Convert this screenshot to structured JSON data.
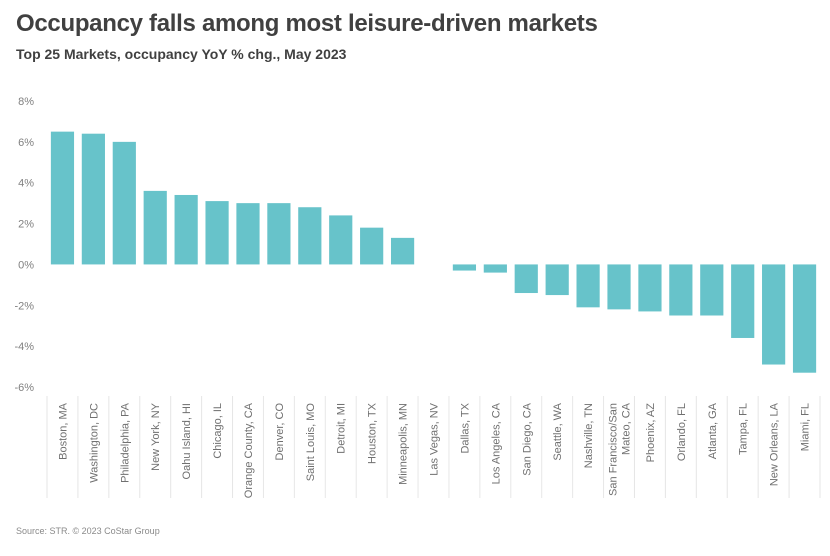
{
  "title": "Occupancy falls among most leisure-driven markets",
  "subtitle": "Top 25 Markets, occupancy YoY % chg., May 2023",
  "source": "Source: STR. © 2023 CoStar Group",
  "colors": {
    "bar": "#67C3CA",
    "text": "#404040",
    "tick": "#808080",
    "gridline": "#e6e6e6"
  },
  "chart_data": {
    "type": "bar",
    "title": "Occupancy falls among most leisure-driven markets",
    "subtitle": "Top 25 Markets, occupancy YoY % chg., May 2023",
    "xlabel": "",
    "ylabel": "",
    "ylim": [
      -6,
      8
    ],
    "yticks": [
      {
        "value": 8,
        "label": "8%"
      },
      {
        "value": 6,
        "label": "6%"
      },
      {
        "value": 4,
        "label": "4%"
      },
      {
        "value": 2,
        "label": "2%"
      },
      {
        "value": 0,
        "label": "0%"
      },
      {
        "value": -2,
        "label": "-2%"
      },
      {
        "value": -4,
        "label": "-4%"
      },
      {
        "value": -6,
        "label": "-6%"
      }
    ],
    "grid": false,
    "categories": [
      [
        "Boston, MA"
      ],
      [
        "Washington, DC"
      ],
      [
        "Philadelphia, PA"
      ],
      [
        "New York, NY"
      ],
      [
        "Oahu Island, HI"
      ],
      [
        "Chicago, IL"
      ],
      [
        "Orange County, CA"
      ],
      [
        "Denver, CO"
      ],
      [
        "Saint Louis, MO"
      ],
      [
        "Detroit, MI"
      ],
      [
        "Houston, TX"
      ],
      [
        "Minneapolis, MN"
      ],
      [
        "Las Vegas, NV"
      ],
      [
        "Dallas, TX"
      ],
      [
        "Los Angeles, CA"
      ],
      [
        "San Diego, CA"
      ],
      [
        "Seattle, WA"
      ],
      [
        "Nashville, TN"
      ],
      [
        "San Francisco/San",
        "Mateo, CA"
      ],
      [
        "Phoenix, AZ"
      ],
      [
        "Orlando, FL"
      ],
      [
        "Atlanta, GA"
      ],
      [
        "Tampa, FL"
      ],
      [
        "New Orleans, LA"
      ],
      [
        "Miami, FL"
      ]
    ],
    "values": [
      6.5,
      6.4,
      6.0,
      3.6,
      3.4,
      3.1,
      3.0,
      3.0,
      2.8,
      2.4,
      1.8,
      1.3,
      0.0,
      -0.3,
      -0.4,
      -1.4,
      -1.5,
      -2.1,
      -2.2,
      -2.3,
      -2.5,
      -2.5,
      -3.6,
      -4.9,
      -5.3
    ]
  }
}
